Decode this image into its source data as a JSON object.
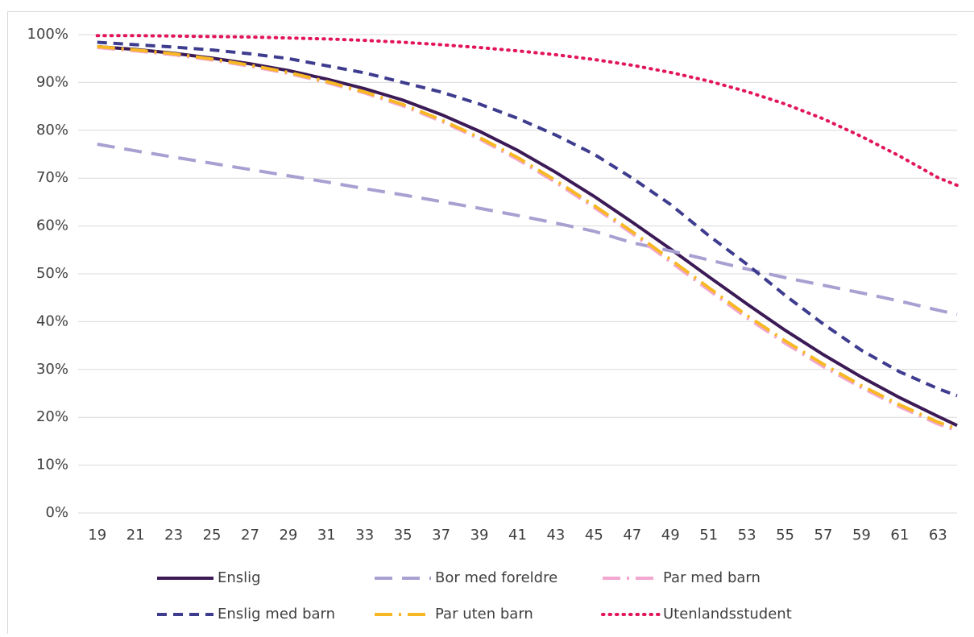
{
  "chart_data": {
    "type": "line",
    "x": [
      19,
      21,
      23,
      25,
      27,
      29,
      31,
      33,
      35,
      37,
      39,
      41,
      43,
      45,
      47,
      49,
      51,
      53,
      55,
      57,
      59,
      61,
      63,
      64
    ],
    "xlim": [
      18,
      64
    ],
    "xticks": [
      19,
      21,
      23,
      25,
      27,
      29,
      31,
      33,
      35,
      37,
      39,
      41,
      43,
      45,
      47,
      49,
      51,
      53,
      55,
      57,
      59,
      61,
      63
    ],
    "ylim": [
      0,
      100
    ],
    "yticks": [
      {
        "value": 0,
        "label": "0%"
      },
      {
        "value": 10,
        "label": "10%"
      },
      {
        "value": 20,
        "label": "20%"
      },
      {
        "value": 30,
        "label": "30%"
      },
      {
        "value": 40,
        "label": "40%"
      },
      {
        "value": 50,
        "label": "50%"
      },
      {
        "value": 60,
        "label": "60%"
      },
      {
        "value": 70,
        "label": "70%"
      },
      {
        "value": 80,
        "label": "80%"
      },
      {
        "value": 90,
        "label": "90%"
      },
      {
        "value": 100,
        "label": "100%"
      }
    ],
    "grid": true,
    "legend": "bottom",
    "series": [
      {
        "name": "Enslig",
        "color": "#3b1a56",
        "style": "solid",
        "values": [
          97.5,
          96.9,
          96.1,
          95.1,
          93.9,
          92.5,
          90.7,
          88.7,
          86.3,
          83.3,
          79.8,
          75.8,
          71.2,
          66.2,
          60.8,
          55.2,
          49.4,
          43.7,
          38.2,
          33.1,
          28.4,
          24.1,
          20.2,
          18.3
        ]
      },
      {
        "name": "Bor med foreldre",
        "color": "#a9a0d2",
        "style": "longdash",
        "values": [
          77.1,
          75.7,
          74.4,
          73.1,
          71.8,
          70.5,
          69.2,
          67.8,
          66.5,
          65.1,
          63.7,
          62.2,
          60.6,
          58.9,
          56.5,
          54.8,
          52.9,
          51.0,
          49.2,
          47.6,
          46.0,
          44.3,
          42.4,
          41.5
        ]
      },
      {
        "name": "Par med barn",
        "color": "#f3a6cf",
        "style": "dashdot",
        "values": [
          97.3,
          96.6,
          95.8,
          94.7,
          93.4,
          91.9,
          90.0,
          87.8,
          85.1,
          81.9,
          78.2,
          73.9,
          69.1,
          63.9,
          58.4,
          52.5,
          46.6,
          40.8,
          35.5,
          30.6,
          26.2,
          22.2,
          18.6,
          17.2
        ]
      },
      {
        "name": "Enslig med barn",
        "color": "#3e3c8e",
        "style": "dashed",
        "values": [
          98.4,
          97.9,
          97.4,
          96.8,
          96.0,
          95.0,
          93.5,
          92.0,
          90.0,
          88.0,
          85.5,
          82.5,
          79.0,
          75.0,
          70.0,
          64.5,
          58.0,
          52.0,
          45.5,
          39.5,
          34.0,
          29.5,
          26.0,
          24.5
        ]
      },
      {
        "name": "Par uten barn",
        "color": "#f7b824",
        "style": "dashdot",
        "values": [
          97.5,
          96.8,
          96.0,
          94.9,
          93.6,
          92.1,
          90.2,
          88.0,
          85.4,
          82.2,
          78.5,
          74.3,
          69.5,
          64.3,
          58.8,
          53.0,
          47.1,
          41.3,
          36.0,
          31.1,
          26.6,
          22.6,
          19.0,
          17.6
        ]
      },
      {
        "name": "Utenlandsstudent",
        "color": "#e2155c",
        "style": "dotted",
        "values": [
          99.8,
          99.8,
          99.7,
          99.6,
          99.5,
          99.3,
          99.1,
          98.8,
          98.4,
          97.9,
          97.3,
          96.6,
          95.8,
          94.8,
          93.6,
          92.1,
          90.3,
          88.1,
          85.5,
          82.4,
          78.7,
          74.6,
          70.1,
          68.5
        ]
      }
    ]
  }
}
